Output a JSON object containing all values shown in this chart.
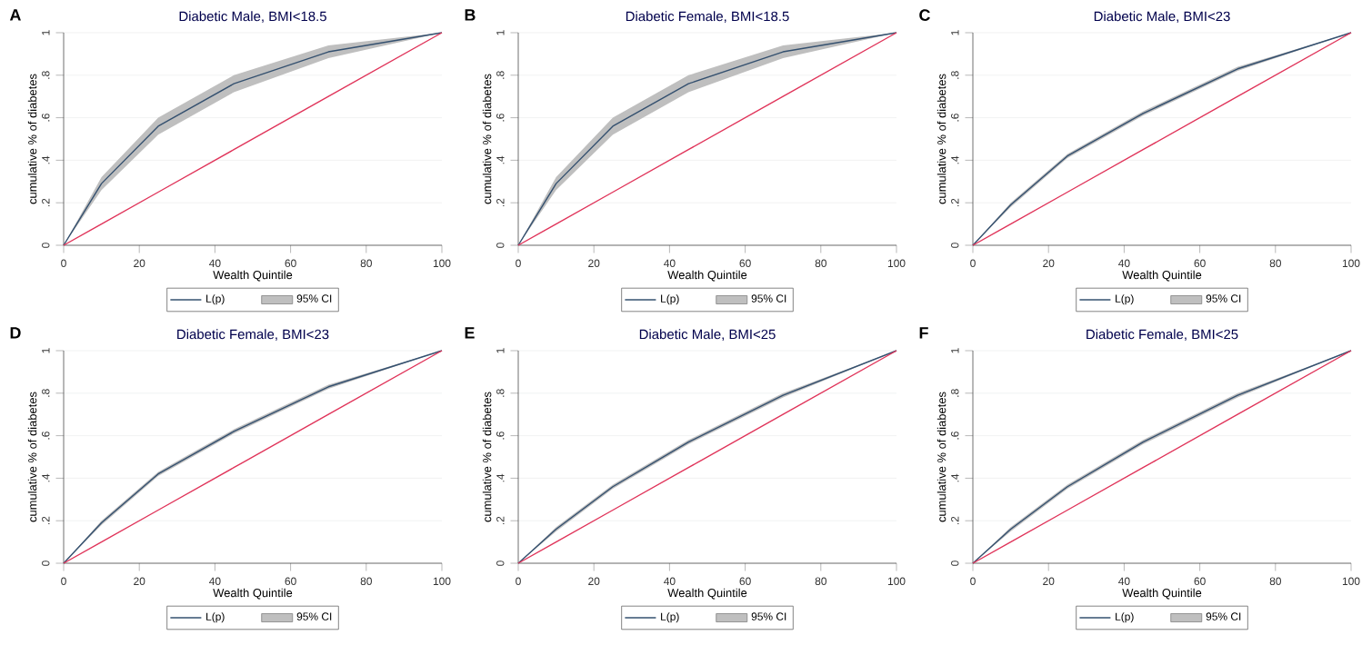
{
  "chart_data": [
    {
      "type": "line",
      "title": "Diabetic Male, BMI<18.5",
      "xlabel": "Wealth Quintile",
      "ylabel": "cumulative % of diabetes",
      "annotations": [
        "A",
        "95% CI"
      ],
      "x": [
        0,
        10,
        25,
        45,
        70,
        100
      ],
      "xlim": [
        0,
        100
      ],
      "xticks": [
        0,
        20,
        40,
        60,
        80,
        100
      ],
      "ylim": [
        0,
        1
      ],
      "yticks": [
        0,
        {
          "value": 0.2,
          "label": ".2"
        },
        {
          "value": 0.4,
          "label": ".4"
        },
        {
          "value": 0.6,
          "label": ".6"
        },
        {
          "value": 0.8,
          "label": ".8"
        },
        1
      ],
      "grid": "y",
      "legend": "bottom",
      "marker": "none",
      "line_style": "solid",
      "series": [
        {
          "name": "L(p)",
          "color": "#34506f",
          "values": [
            0,
            0.29,
            0.56,
            0.76,
            0.91,
            1
          ],
          "lower": [
            0,
            0.26,
            0.52,
            0.72,
            0.88,
            1
          ],
          "upper": [
            0,
            0.32,
            0.6,
            0.8,
            0.94,
            1
          ]
        },
        {
          "color": "#e0345a",
          "values": [
            0,
            0.1,
            0.25,
            0.45,
            0.7,
            1
          ]
        }
      ]
    },
    {
      "type": "line",
      "title": "Diabetic Female, BMI<18.5",
      "xlabel": "Wealth Quintile",
      "ylabel": "cumulative % of diabetes",
      "annotations": [
        "B",
        "95% CI"
      ],
      "x": [
        0,
        10,
        25,
        45,
        70,
        100
      ],
      "xlim": [
        0,
        100
      ],
      "xticks": [
        0,
        20,
        40,
        60,
        80,
        100
      ],
      "ylim": [
        0,
        1
      ],
      "yticks": [
        0,
        {
          "value": 0.2,
          "label": ".2"
        },
        {
          "value": 0.4,
          "label": ".4"
        },
        {
          "value": 0.6,
          "label": ".6"
        },
        {
          "value": 0.8,
          "label": ".8"
        },
        1
      ],
      "grid": "y",
      "legend": "bottom",
      "marker": "none",
      "line_style": "solid",
      "series": [
        {
          "name": "L(p)",
          "color": "#34506f",
          "values": [
            0,
            0.29,
            0.56,
            0.76,
            0.91,
            1
          ],
          "lower": [
            0,
            0.26,
            0.52,
            0.72,
            0.88,
            1
          ],
          "upper": [
            0,
            0.32,
            0.6,
            0.8,
            0.94,
            1
          ]
        },
        {
          "color": "#e0345a",
          "values": [
            0,
            0.1,
            0.25,
            0.45,
            0.7,
            1
          ]
        }
      ]
    },
    {
      "type": "line",
      "title": "Diabetic Male, BMI<23",
      "xlabel": "Wealth Quintile",
      "ylabel": "cumulative % of diabetes",
      "annotations": [
        "C",
        "95% CI"
      ],
      "x": [
        0,
        10,
        25,
        45,
        70,
        100
      ],
      "xlim": [
        0,
        100
      ],
      "xticks": [
        0,
        20,
        40,
        60,
        80,
        100
      ],
      "ylim": [
        0,
        1
      ],
      "yticks": [
        0,
        {
          "value": 0.2,
          "label": ".2"
        },
        {
          "value": 0.4,
          "label": ".4"
        },
        {
          "value": 0.6,
          "label": ".6"
        },
        {
          "value": 0.8,
          "label": ".8"
        },
        1
      ],
      "grid": "y",
      "legend": "bottom",
      "marker": "none",
      "line_style": "solid",
      "series": [
        {
          "name": "L(p)",
          "color": "#34506f",
          "values": [
            0,
            0.19,
            0.42,
            0.62,
            0.83,
            1
          ],
          "lower": [
            0,
            0.18,
            0.41,
            0.61,
            0.82,
            1
          ],
          "upper": [
            0,
            0.2,
            0.43,
            0.63,
            0.84,
            1
          ]
        },
        {
          "color": "#e0345a",
          "values": [
            0,
            0.1,
            0.25,
            0.45,
            0.7,
            1
          ]
        }
      ]
    },
    {
      "type": "line",
      "title": "Diabetic Female, BMI<23",
      "xlabel": "Wealth Quintile",
      "ylabel": "cumulative % of diabetes",
      "annotations": [
        "D",
        "95% CI"
      ],
      "x": [
        0,
        10,
        25,
        45,
        70,
        100
      ],
      "xlim": [
        0,
        100
      ],
      "xticks": [
        0,
        20,
        40,
        60,
        80,
        100
      ],
      "ylim": [
        0,
        1
      ],
      "yticks": [
        0,
        {
          "value": 0.2,
          "label": ".2"
        },
        {
          "value": 0.4,
          "label": ".4"
        },
        {
          "value": 0.6,
          "label": ".6"
        },
        {
          "value": 0.8,
          "label": ".8"
        },
        1
      ],
      "grid": "y",
      "legend": "bottom",
      "marker": "none",
      "line_style": "solid",
      "series": [
        {
          "name": "L(p)",
          "color": "#34506f",
          "values": [
            0,
            0.19,
            0.42,
            0.62,
            0.83,
            1
          ],
          "lower": [
            0,
            0.18,
            0.41,
            0.61,
            0.82,
            1
          ],
          "upper": [
            0,
            0.2,
            0.43,
            0.63,
            0.84,
            1
          ]
        },
        {
          "color": "#e0345a",
          "values": [
            0,
            0.1,
            0.25,
            0.45,
            0.7,
            1
          ]
        }
      ]
    },
    {
      "type": "line",
      "title": "Diabetic Male, BMI<25",
      "xlabel": "Wealth Quintile",
      "ylabel": "cumulative % of diabetes",
      "annotations": [
        "E",
        "95% CI"
      ],
      "x": [
        0,
        10,
        25,
        45,
        70,
        100
      ],
      "xlim": [
        0,
        100
      ],
      "xticks": [
        0,
        20,
        40,
        60,
        80,
        100
      ],
      "ylim": [
        0,
        1
      ],
      "yticks": [
        0,
        {
          "value": 0.2,
          "label": ".2"
        },
        {
          "value": 0.4,
          "label": ".4"
        },
        {
          "value": 0.6,
          "label": ".6"
        },
        {
          "value": 0.8,
          "label": ".8"
        },
        1
      ],
      "grid": "y",
      "legend": "bottom",
      "marker": "none",
      "line_style": "solid",
      "series": [
        {
          "name": "L(p)",
          "color": "#34506f",
          "values": [
            0,
            0.16,
            0.36,
            0.57,
            0.79,
            1
          ],
          "lower": [
            0,
            0.15,
            0.35,
            0.56,
            0.78,
            1
          ],
          "upper": [
            0,
            0.17,
            0.37,
            0.58,
            0.8,
            1
          ]
        },
        {
          "color": "#e0345a",
          "values": [
            0,
            0.1,
            0.25,
            0.45,
            0.7,
            1
          ]
        }
      ]
    },
    {
      "type": "line",
      "title": "Diabetic Female, BMI<25",
      "xlabel": "Wealth Quintile",
      "ylabel": "cumulative % of diabetes",
      "annotations": [
        "F",
        "95% CI"
      ],
      "x": [
        0,
        10,
        25,
        45,
        70,
        100
      ],
      "xlim": [
        0,
        100
      ],
      "xticks": [
        0,
        20,
        40,
        60,
        80,
        100
      ],
      "ylim": [
        0,
        1
      ],
      "yticks": [
        0,
        {
          "value": 0.2,
          "label": ".2"
        },
        {
          "value": 0.4,
          "label": ".4"
        },
        {
          "value": 0.6,
          "label": ".6"
        },
        {
          "value": 0.8,
          "label": ".8"
        },
        1
      ],
      "grid": "y",
      "legend": "bottom",
      "marker": "none",
      "line_style": "solid",
      "series": [
        {
          "name": "L(p)",
          "color": "#34506f",
          "values": [
            0,
            0.16,
            0.36,
            0.57,
            0.79,
            1
          ],
          "lower": [
            0,
            0.15,
            0.35,
            0.56,
            0.78,
            1
          ],
          "upper": [
            0,
            0.17,
            0.37,
            0.58,
            0.8,
            1
          ]
        },
        {
          "color": "#e0345a",
          "values": [
            0,
            0.1,
            0.25,
            0.45,
            0.7,
            1
          ]
        }
      ]
    }
  ]
}
